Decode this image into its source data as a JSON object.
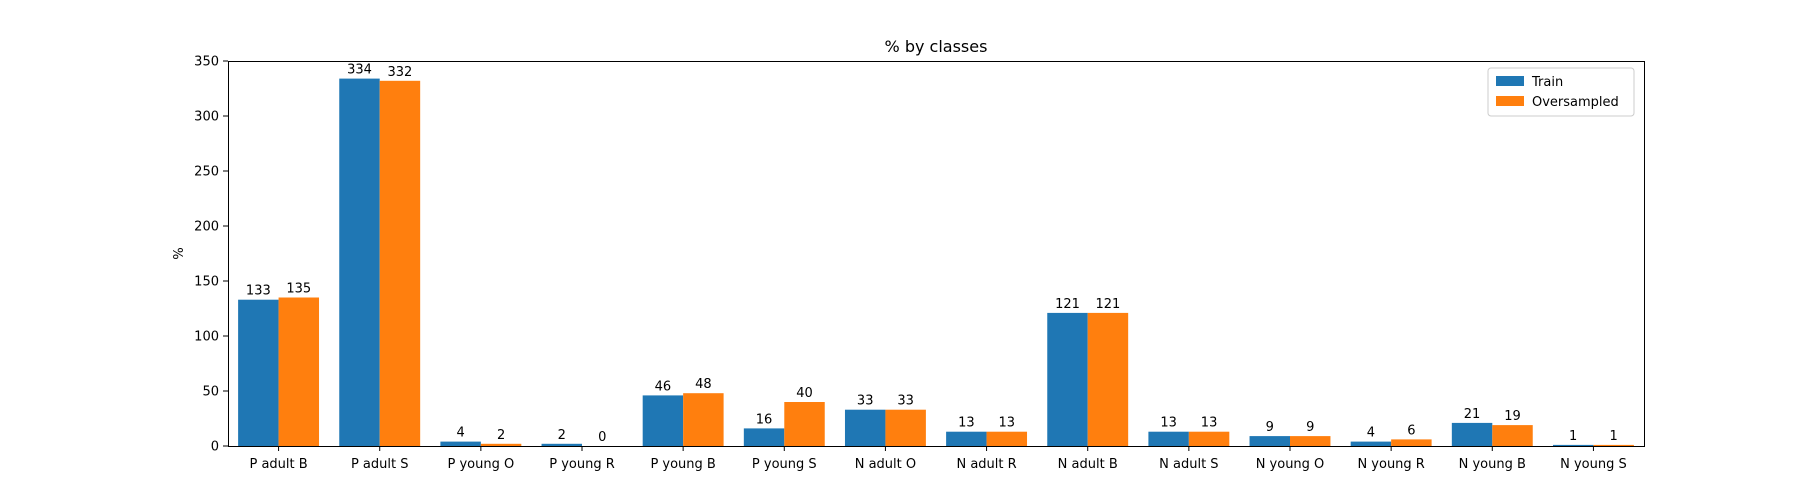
{
  "chart_data": {
    "type": "bar",
    "title": "% by classes",
    "xlabel": "",
    "ylabel": "%",
    "ylim": [
      0,
      350
    ],
    "yticks": [
      0,
      50,
      100,
      150,
      200,
      250,
      300,
      350
    ],
    "grid": false,
    "legend_position": "top-right",
    "categories": [
      "P adult B",
      "P adult S",
      "P young O",
      "P young R",
      "P young B",
      "P young S",
      "N adult O",
      "N adult R",
      "N adult B",
      "N adult S",
      "N young O",
      "N young R",
      "N young B",
      "N young S"
    ],
    "series": [
      {
        "name": "Train",
        "color": "#1f77b4",
        "values": [
          133,
          334,
          4,
          2,
          46,
          16,
          33,
          13,
          121,
          13,
          9,
          4,
          21,
          1
        ]
      },
      {
        "name": "Oversampled",
        "color": "#ff7f0e",
        "values": [
          135,
          332,
          2,
          0,
          48,
          40,
          33,
          13,
          121,
          13,
          9,
          6,
          19,
          1
        ]
      }
    ]
  }
}
